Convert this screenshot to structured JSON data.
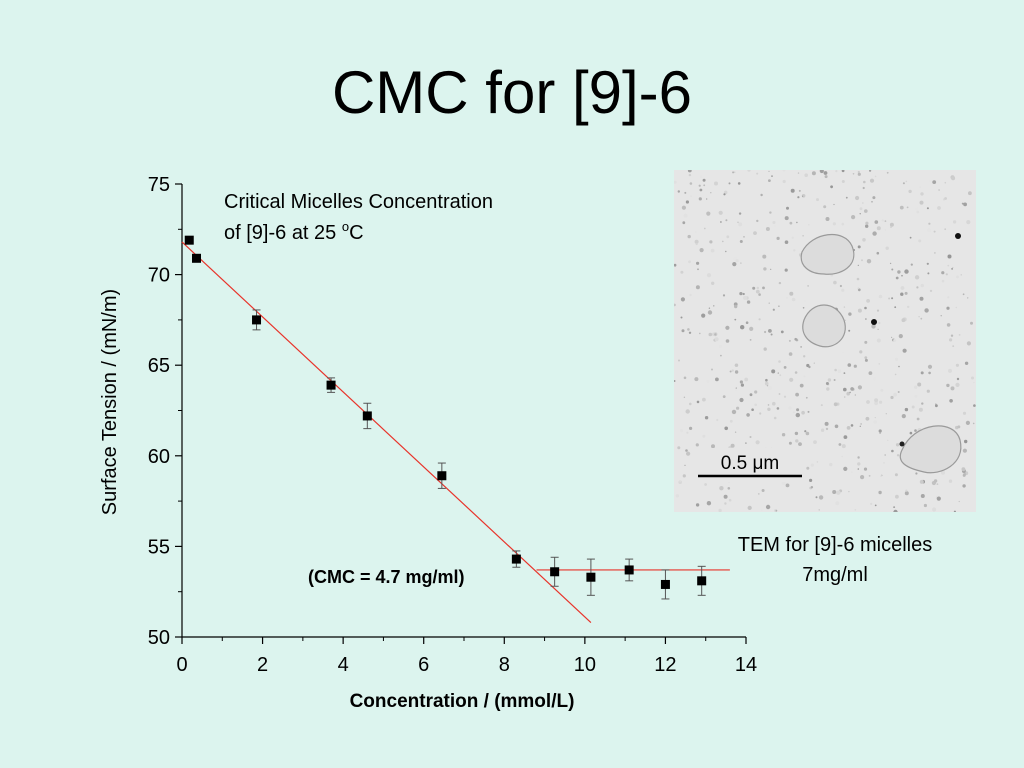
{
  "slide": {
    "title": "CMC for [9]-6"
  },
  "chart_data": {
    "type": "scatter",
    "title": "",
    "xlabel": "Concentration / (mmol/L)",
    "ylabel": "Surface Tension / (mN/m)",
    "xlim": [
      0,
      14
    ],
    "ylim": [
      50,
      75
    ],
    "xticks": [
      "0",
      "2",
      "4",
      "6",
      "8",
      "10",
      "12",
      "14"
    ],
    "yticks": [
      "50",
      "55",
      "60",
      "65",
      "70",
      "75"
    ],
    "annotation_lines": [
      "Critical Micelles Concentration",
      "of [9]-6 at 25 ",
      "o",
      "C"
    ],
    "cmc_label": "(CMC = 4.7 mg/ml)",
    "points": [
      {
        "x": 0.18,
        "y": 71.9,
        "err": 0.0
      },
      {
        "x": 0.36,
        "y": 70.9,
        "err": 0.0
      },
      {
        "x": 1.85,
        "y": 67.5,
        "err": 0.55
      },
      {
        "x": 3.7,
        "y": 63.9,
        "err": 0.4
      },
      {
        "x": 4.6,
        "y": 62.2,
        "err": 0.7
      },
      {
        "x": 6.45,
        "y": 58.9,
        "err": 0.7
      },
      {
        "x": 8.3,
        "y": 54.3,
        "err": 0.45
      },
      {
        "x": 9.25,
        "y": 53.6,
        "err": 0.8
      },
      {
        "x": 10.15,
        "y": 53.3,
        "err": 1.0
      },
      {
        "x": 11.1,
        "y": 53.7,
        "err": 0.6
      },
      {
        "x": 12.0,
        "y": 52.9,
        "err": 0.8
      },
      {
        "x": 12.9,
        "y": 53.1,
        "err": 0.8
      }
    ],
    "fit_lines": [
      {
        "name": "",
        "x": [
          0.0,
          10.15
        ],
        "y": [
          71.8,
          50.8
        ]
      },
      {
        "name": "",
        "x": [
          8.8,
          13.6
        ],
        "y": [
          53.7,
          53.7
        ]
      }
    ],
    "colors": {
      "points": "#000000",
      "fit": "#e8332a",
      "axes": "#000000"
    }
  },
  "tem": {
    "scalebar_label_number": "0.5 ",
    "scalebar_label_unit": "μm",
    "caption_line1": "TEM for [9]-6 micelles",
    "caption_line2": "7mg/ml"
  }
}
